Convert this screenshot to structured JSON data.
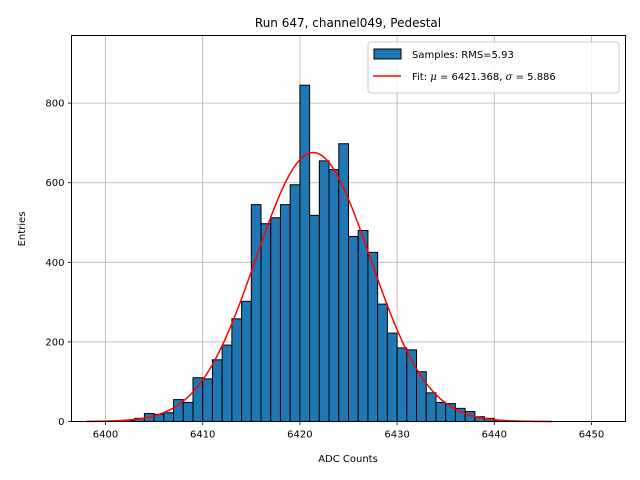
{
  "chart_data": {
    "type": "bar",
    "title": "Run 647, channel049, Pedestal",
    "xlabel": "ADC Counts",
    "ylabel": "Entries",
    "xlim": [
      5396.5,
      6453.5
    ],
    "ylim": [
      0,
      970
    ],
    "x_ticks": [
      6400,
      6410,
      6420,
      6430,
      6440,
      6450
    ],
    "y_ticks": [
      0,
      200,
      400,
      600,
      800
    ],
    "grid": true,
    "legend_position": "top-right",
    "colors": {
      "bars": "#1f77b4",
      "bar_edge": "#000000",
      "fit": "#ff0000",
      "grid": "#b0b0b0"
    },
    "histogram": {
      "name": "Samples: RMS=5.93",
      "bin_width": 1,
      "bin_starts": [
        6402,
        6403,
        6404,
        6405,
        6406,
        6407,
        6408,
        6409,
        6410,
        6411,
        6412,
        6413,
        6414,
        6415,
        6416,
        6417,
        6418,
        6419,
        6420,
        6421,
        6422,
        6423,
        6424,
        6425,
        6426,
        6427,
        6428,
        6429,
        6430,
        6431,
        6432,
        6433,
        6434,
        6435,
        6436,
        6437,
        6438,
        6439,
        6440
      ],
      "values": [
        3,
        8,
        20,
        18,
        22,
        55,
        48,
        110,
        107,
        155,
        192,
        258,
        302,
        545,
        497,
        512,
        545,
        595,
        845,
        518,
        655,
        633,
        698,
        465,
        480,
        425,
        295,
        222,
        185,
        180,
        125,
        72,
        48,
        45,
        33,
        25,
        12,
        8,
        3
      ]
    },
    "fit": {
      "name_prefix": "Fit: ",
      "mu_symbol": "μ",
      "mu_text": " = 6421.368, ",
      "sigma_symbol": "σ",
      "sigma_text": " = 5.886",
      "mu": 6421.368,
      "sigma": 5.886,
      "amplitude": 676,
      "x_range": [
        6398,
        6446
      ]
    }
  }
}
